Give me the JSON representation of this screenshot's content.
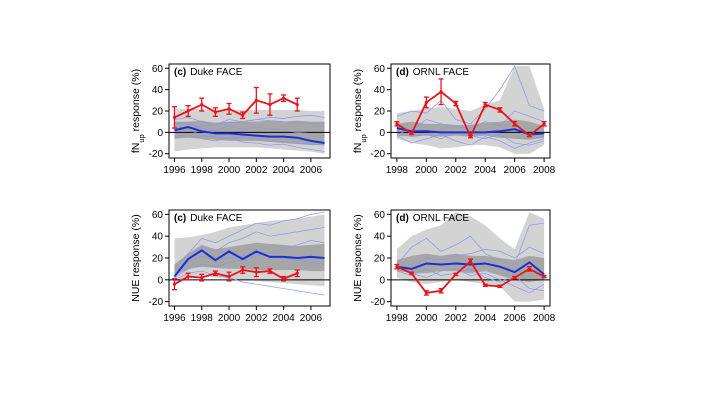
{
  "colors": {
    "model_mean": "#1c2fd6",
    "model_members": "#8a96f0",
    "observed": "#e8141c",
    "band_outer": "#d3d3d3",
    "band_inner": "#a6a6a6"
  },
  "chart_data": [
    {
      "type": "line",
      "panel_label": "(c)",
      "site": "Duke FACE",
      "ylabel_main": "fN",
      "ylabel_sub": "up",
      "ylabel_rest": " response (%)",
      "xlim": [
        1996,
        2007
      ],
      "ylim": [
        -20,
        60
      ],
      "xticks": [
        "1996",
        "1998",
        "2000",
        "2002",
        "2004",
        "2006"
      ],
      "yticks": [
        "-20",
        "0",
        "20",
        "40",
        "60"
      ],
      "band_x": [
        1996,
        1997,
        1998,
        1999,
        2000,
        2001,
        2002,
        2003,
        2004,
        2005,
        2006,
        2007
      ],
      "band_outer_upper": [
        22,
        22,
        22,
        21,
        21,
        21,
        21,
        21,
        21,
        21,
        20,
        20
      ],
      "band_outer_lower": [
        -18,
        -16,
        -15,
        -14,
        -14,
        -14,
        -14,
        -15,
        -16,
        -17,
        -18,
        -20
      ],
      "band_inner_upper": [
        10,
        10,
        11,
        9,
        10,
        10,
        10,
        11,
        10,
        11,
        10,
        10
      ],
      "band_inner_lower": [
        -6,
        -5,
        -6,
        -7,
        -8,
        -8,
        -8,
        -9,
        -10,
        -11,
        -12,
        -12
      ],
      "model_members": [
        [
          1996,
          1997,
          1998,
          1999,
          2000,
          2001,
          2002,
          2003,
          2004,
          2005,
          2006,
          2007
        ],
        [
          12,
          14,
          10,
          7,
          12,
          10,
          12,
          14,
          13,
          15,
          16,
          14
        ],
        [
          -4,
          -2,
          -6,
          -8,
          -5,
          -9,
          -10,
          -12,
          -11,
          -14,
          -16,
          -18
        ],
        [
          8,
          9,
          4,
          2,
          6,
          3,
          5,
          3,
          2,
          0,
          -1,
          -3
        ],
        [
          2,
          3,
          -3,
          -4,
          -6,
          -4,
          -6,
          -8,
          -9,
          -10,
          -11,
          -12
        ],
        [
          5,
          4,
          6,
          8,
          9,
          10,
          12,
          11,
          10,
          9,
          8,
          8
        ]
      ],
      "model_mean": {
        "x": [
          1996,
          1997,
          1998,
          1999,
          2000,
          2001,
          2002,
          2003,
          2004,
          2005,
          2006,
          2007
        ],
        "y": [
          2,
          5,
          1,
          -1,
          -1,
          -2,
          -3,
          -4,
          -4,
          -5,
          -8,
          -10
        ]
      },
      "observed": {
        "x": [
          1996,
          1997,
          1998,
          1999,
          2000,
          2001,
          2002,
          2003,
          2004,
          2005
        ],
        "y": [
          14,
          20,
          26,
          19,
          22,
          16,
          30,
          26,
          32,
          26
        ],
        "err": [
          10,
          5,
          6,
          4,
          5,
          3,
          12,
          10,
          3,
          6
        ]
      }
    },
    {
      "type": "line",
      "panel_label": "(d)",
      "site": "ORNL FACE",
      "ylabel_main": "fN",
      "ylabel_sub": "up",
      "ylabel_rest": " response (%)",
      "xlim": [
        1998,
        2008
      ],
      "ylim": [
        -20,
        60
      ],
      "xticks": [
        "1998",
        "2000",
        "2002",
        "2004",
        "2006",
        "2008"
      ],
      "yticks": [
        "-20",
        "0",
        "20",
        "40",
        "60"
      ],
      "band_x": [
        1998,
        1999,
        2000,
        2001,
        2002,
        2003,
        2004,
        2005,
        2006,
        2007,
        2008
      ],
      "band_outer_upper": [
        18,
        20,
        22,
        24,
        22,
        20,
        26,
        30,
        62,
        62,
        22
      ],
      "band_outer_lower": [
        -6,
        -10,
        -12,
        -15,
        -14,
        -12,
        -12,
        -14,
        -20,
        -20,
        -12
      ],
      "band_inner_upper": [
        8,
        10,
        8,
        8,
        7,
        7,
        9,
        10,
        12,
        10,
        6
      ],
      "band_inner_lower": [
        -3,
        -4,
        -3,
        -4,
        -3,
        -4,
        -3,
        -5,
        -6,
        -7,
        -5
      ],
      "model_members": [
        [
          1998,
          1999,
          2000,
          2001,
          2002,
          2003,
          2004,
          2005,
          2006,
          2007,
          2008
        ],
        [
          15,
          20,
          18,
          30,
          12,
          8,
          22,
          40,
          62,
          25,
          20
        ],
        [
          -3,
          -10,
          -6,
          -2,
          -8,
          -12,
          -4,
          -8,
          -15,
          -10,
          -6
        ],
        [
          5,
          2,
          12,
          8,
          5,
          4,
          10,
          6,
          20,
          15,
          10
        ],
        [
          2,
          -4,
          -2,
          -6,
          0,
          -3,
          -6,
          -2,
          -10,
          -12,
          -8
        ]
      ],
      "model_mean": {
        "x": [
          1998,
          1999,
          2000,
          2001,
          2002,
          2003,
          2004,
          2005,
          2006,
          2007,
          2008
        ],
        "y": [
          4,
          1,
          1,
          0,
          0,
          0,
          0,
          1,
          3,
          -2,
          -1
        ]
      },
      "observed": {
        "x": [
          1998,
          1999,
          2000,
          2001,
          2002,
          2003,
          2004,
          2005,
          2006,
          2007,
          2008
        ],
        "y": [
          8,
          -1,
          28,
          38,
          27,
          -4,
          26,
          21,
          8,
          -3,
          8
        ],
        "err": [
          2,
          1,
          5,
          12,
          2,
          1,
          2,
          2,
          2,
          1,
          2
        ]
      }
    },
    {
      "type": "line",
      "panel_label": "(c)",
      "site": "Duke FACE",
      "ylabel_main": "NUE response (%)",
      "ylabel_sub": "",
      "ylabel_rest": "",
      "xlim": [
        1996,
        2007
      ],
      "ylim": [
        -20,
        60
      ],
      "xticks": [
        "1996",
        "1998",
        "2000",
        "2002",
        "2004",
        "2006"
      ],
      "yticks": [
        "-20",
        "0",
        "20",
        "40",
        "60"
      ],
      "band_x": [
        1996,
        1997,
        1998,
        1999,
        2000,
        2001,
        2002,
        2003,
        2004,
        2005,
        2006,
        2007
      ],
      "band_outer_upper": [
        38,
        39,
        41,
        44,
        48,
        50,
        52,
        54,
        55,
        56,
        58,
        60
      ],
      "band_outer_lower": [
        -2,
        2,
        4,
        2,
        1,
        0,
        -1,
        -2,
        -3,
        -4,
        -5,
        -6
      ],
      "band_inner_upper": [
        14,
        24,
        32,
        28,
        30,
        32,
        34,
        33,
        32,
        31,
        32,
        33
      ],
      "band_inner_lower": [
        4,
        10,
        12,
        11,
        10,
        10,
        9,
        9,
        9,
        9,
        8,
        8
      ],
      "model_members": [
        [
          1996,
          1997,
          1998,
          1999,
          2000,
          2001,
          2002,
          2003,
          2004,
          2005,
          2006,
          2007
        ],
        [
          10,
          24,
          38,
          34,
          40,
          46,
          52,
          50,
          54,
          56,
          60,
          62
        ],
        [
          4,
          16,
          22,
          18,
          20,
          22,
          24,
          22,
          20,
          18,
          16,
          14
        ],
        [
          2,
          10,
          14,
          12,
          16,
          18,
          22,
          26,
          28,
          32,
          36,
          34
        ],
        [
          0,
          6,
          8,
          4,
          2,
          -2,
          -4,
          -6,
          -8,
          -10,
          -12,
          -14
        ],
        [
          6,
          18,
          30,
          26,
          34,
          38,
          44,
          40,
          42,
          44,
          46,
          48
        ]
      ],
      "model_mean": {
        "x": [
          1996,
          1997,
          1998,
          1999,
          2000,
          2001,
          2002,
          2003,
          2004,
          2005,
          2006,
          2007
        ],
        "y": [
          3,
          19,
          27,
          18,
          26,
          19,
          26,
          21,
          21,
          20,
          21,
          20
        ]
      },
      "observed": {
        "x": [
          1996,
          1997,
          1998,
          1999,
          2000,
          2001,
          2002,
          2003,
          2004,
          2005
        ],
        "y": [
          -4,
          3,
          2,
          6,
          3,
          9,
          7,
          8,
          1,
          6
        ],
        "err": [
          5,
          3,
          3,
          2,
          4,
          3,
          4,
          2,
          2,
          3
        ]
      }
    },
    {
      "type": "line",
      "panel_label": "(d)",
      "site": "ORNL FACE",
      "ylabel_main": "NUE response (%)",
      "ylabel_sub": "",
      "ylabel_rest": "",
      "xlim": [
        1998,
        2008
      ],
      "ylim": [
        -20,
        60
      ],
      "xticks": [
        "1998",
        "2000",
        "2002",
        "2004",
        "2006",
        "2008"
      ],
      "yticks": [
        "-20",
        "0",
        "20",
        "40",
        "60"
      ],
      "band_x": [
        1998,
        1999,
        2000,
        2001,
        2002,
        2003,
        2004,
        2005,
        2006,
        2007,
        2008
      ],
      "band_outer_upper": [
        28,
        40,
        46,
        50,
        62,
        58,
        50,
        38,
        28,
        62,
        56
      ],
      "band_outer_lower": [
        2,
        -2,
        -4,
        -2,
        0,
        -2,
        -4,
        -6,
        -20,
        -20,
        -18
      ],
      "band_inner_upper": [
        18,
        22,
        24,
        22,
        24,
        22,
        22,
        20,
        18,
        22,
        20
      ],
      "band_inner_lower": [
        8,
        6,
        6,
        8,
        8,
        6,
        8,
        4,
        0,
        -2,
        0
      ],
      "model_members": [
        [
          1998,
          1999,
          2000,
          2001,
          2002,
          2003,
          2004,
          2005,
          2006,
          2007,
          2008
        ],
        [
          14,
          30,
          38,
          26,
          32,
          40,
          24,
          18,
          14,
          50,
          52
        ],
        [
          12,
          6,
          2,
          8,
          10,
          4,
          6,
          0,
          -6,
          -12,
          -4
        ],
        [
          10,
          14,
          20,
          18,
          22,
          24,
          28,
          26,
          20,
          30,
          24
        ],
        [
          8,
          4,
          10,
          4,
          6,
          10,
          2,
          -2,
          4,
          -8,
          -10
        ]
      ],
      "model_mean": {
        "x": [
          1998,
          1999,
          2000,
          2001,
          2002,
          2003,
          2004,
          2005,
          2006,
          2007,
          2008
        ],
        "y": [
          12,
          10,
          15,
          14,
          15,
          14,
          15,
          12,
          7,
          16,
          5
        ]
      },
      "observed": {
        "x": [
          1998,
          1999,
          2000,
          2001,
          2002,
          2003,
          2004,
          2005,
          2006,
          2007,
          2008
        ],
        "y": [
          12,
          6,
          -12,
          -10,
          5,
          17,
          -5,
          -6,
          2,
          10,
          3
        ],
        "err": [
          2,
          1,
          2,
          2,
          1,
          2,
          1,
          1,
          1,
          2,
          1
        ]
      }
    }
  ]
}
